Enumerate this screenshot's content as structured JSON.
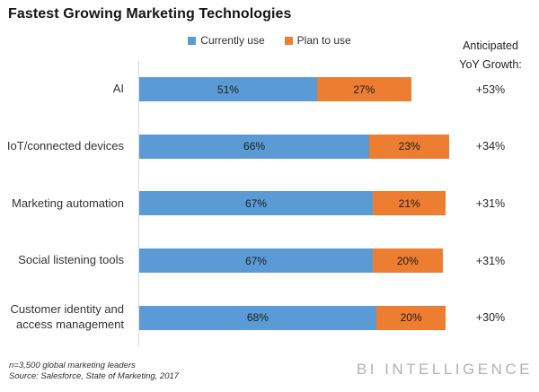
{
  "chart_data": {
    "type": "bar",
    "orientation": "horizontal",
    "stacked": true,
    "title": "Fastest Growing Marketing Technologies",
    "categories": [
      "AI",
      "IoT/connected devices",
      "Marketing automation",
      "Social listening tools",
      "Customer identity and access management"
    ],
    "series": [
      {
        "name": "Currently use",
        "color": "#5b9bd5",
        "values": [
          51,
          66,
          67,
          67,
          68
        ]
      },
      {
        "name": "Plan to use",
        "color": "#ed7d31",
        "values": [
          27,
          23,
          21,
          20,
          20
        ]
      }
    ],
    "annotations": {
      "header_line1": "Anticipated",
      "header_line2": "YoY Growth:",
      "values": [
        "+53%",
        "+34%",
        "+31%",
        "+31%",
        "+30%"
      ]
    },
    "xlim": [
      0,
      100
    ],
    "value_suffix": "%",
    "grid": false,
    "legend_position": "top-center"
  },
  "footer": {
    "note": "n=3,500 global marketing leaders",
    "source": "Source: Salesforce, State of Marketing, 2017",
    "brand": "BI INTELLIGENCE"
  }
}
